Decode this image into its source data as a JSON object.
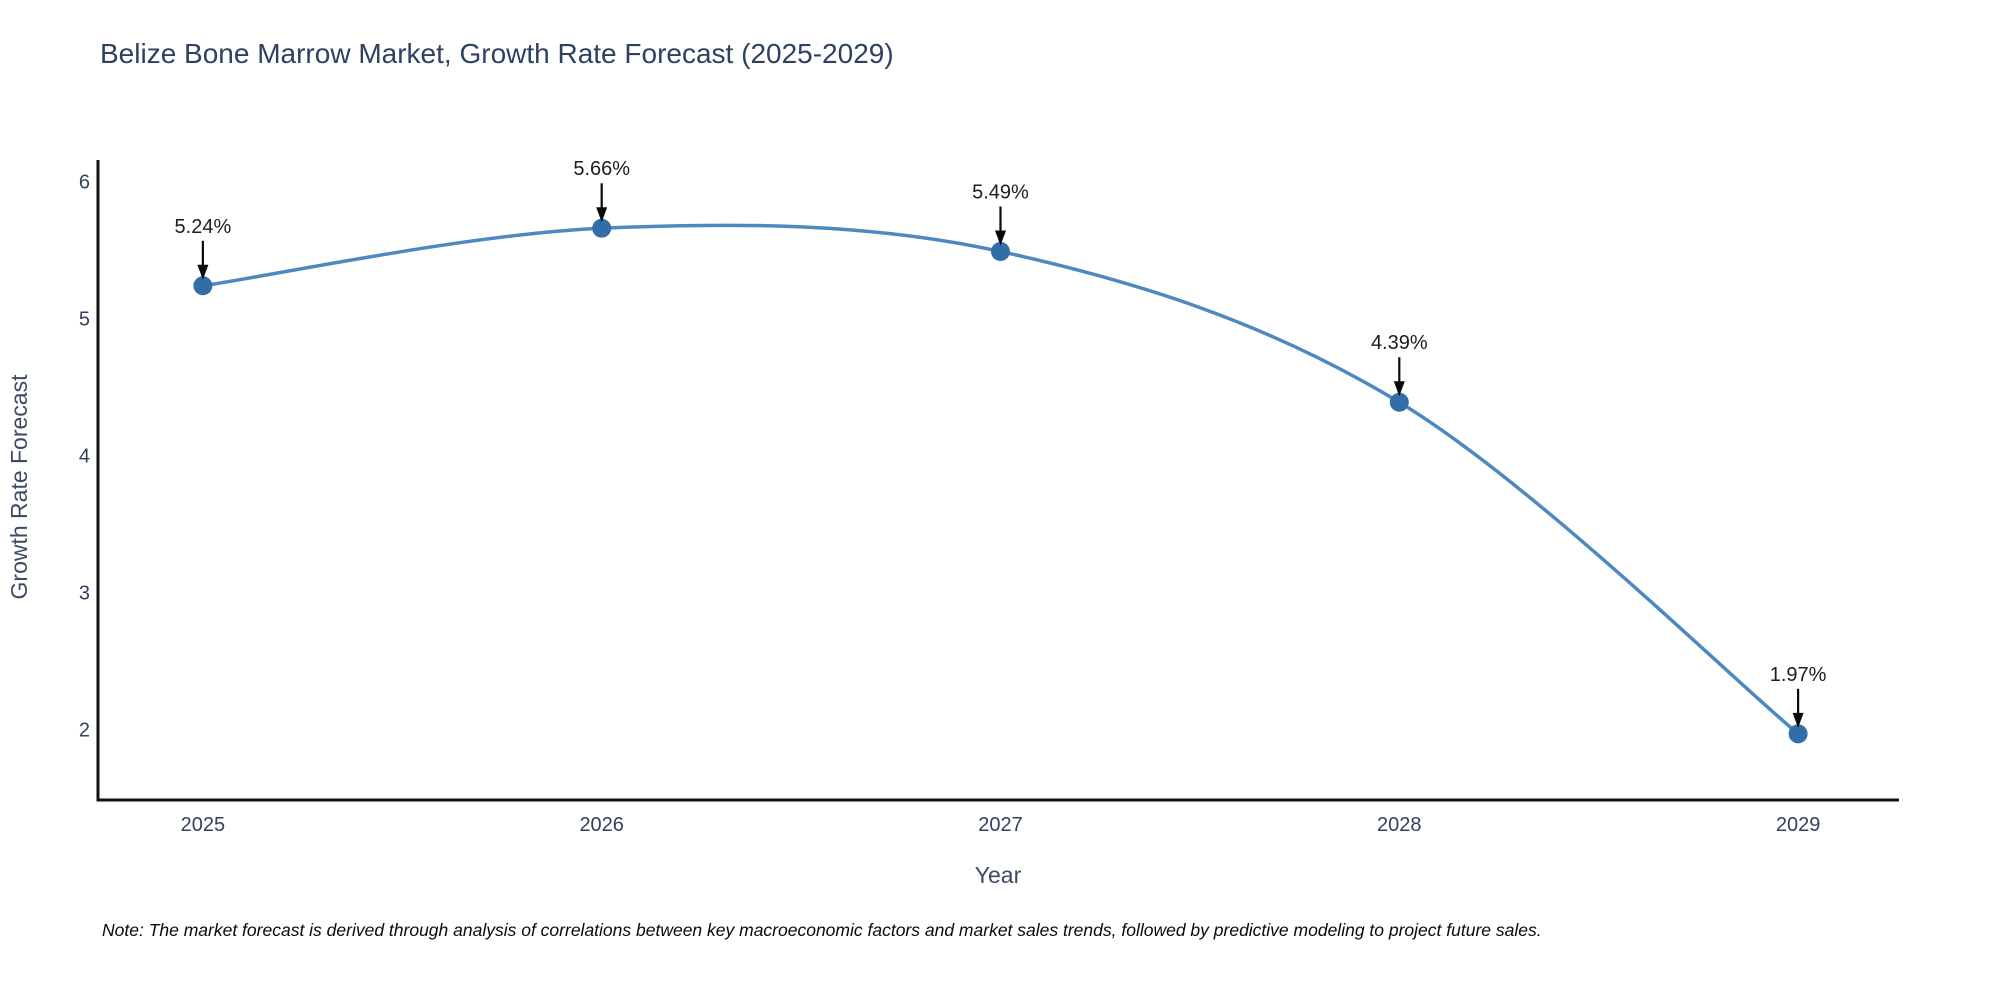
{
  "title": "Belize Bone Marrow Market, Growth Rate Forecast (2025-2029)",
  "note": "Note: The market forecast is derived through analysis of correlations between key macroeconomic factors and market sales trends, followed by predictive modeling to project future sales.",
  "colors": {
    "line": "#4d89c0",
    "marker": "#336da8",
    "axis_line": "#111111",
    "arrow": "#0a0a0a",
    "title_text": "#2e4160",
    "tick_text": "#33415c",
    "annotation_text": "#1d1d1d",
    "note_text": "#0a0a0a",
    "background": "#ffffff"
  },
  "chart_data": {
    "type": "line",
    "line_shape": "spline",
    "x": [
      2025,
      2026,
      2027,
      2028,
      2029
    ],
    "values": [
      5.24,
      5.66,
      5.49,
      4.39,
      1.97
    ],
    "point_labels": [
      "5.24%",
      "5.66%",
      "5.49%",
      "4.39%",
      "1.97%"
    ],
    "annotation_style": "label-above-with-down-arrow",
    "title": "Belize Bone Marrow Market, Growth Rate Forecast (2025-2029)",
    "xlabel": "Year",
    "ylabel": "Growth Rate Forecast",
    "xticks": [
      2025,
      2026,
      2027,
      2028,
      2029
    ],
    "yticks": [
      2,
      3,
      4,
      5,
      6
    ],
    "xlim": [
      2024.737,
      2029.253
    ],
    "ylim": [
      1.487,
      6.158
    ],
    "grid": false,
    "legend": "none"
  }
}
